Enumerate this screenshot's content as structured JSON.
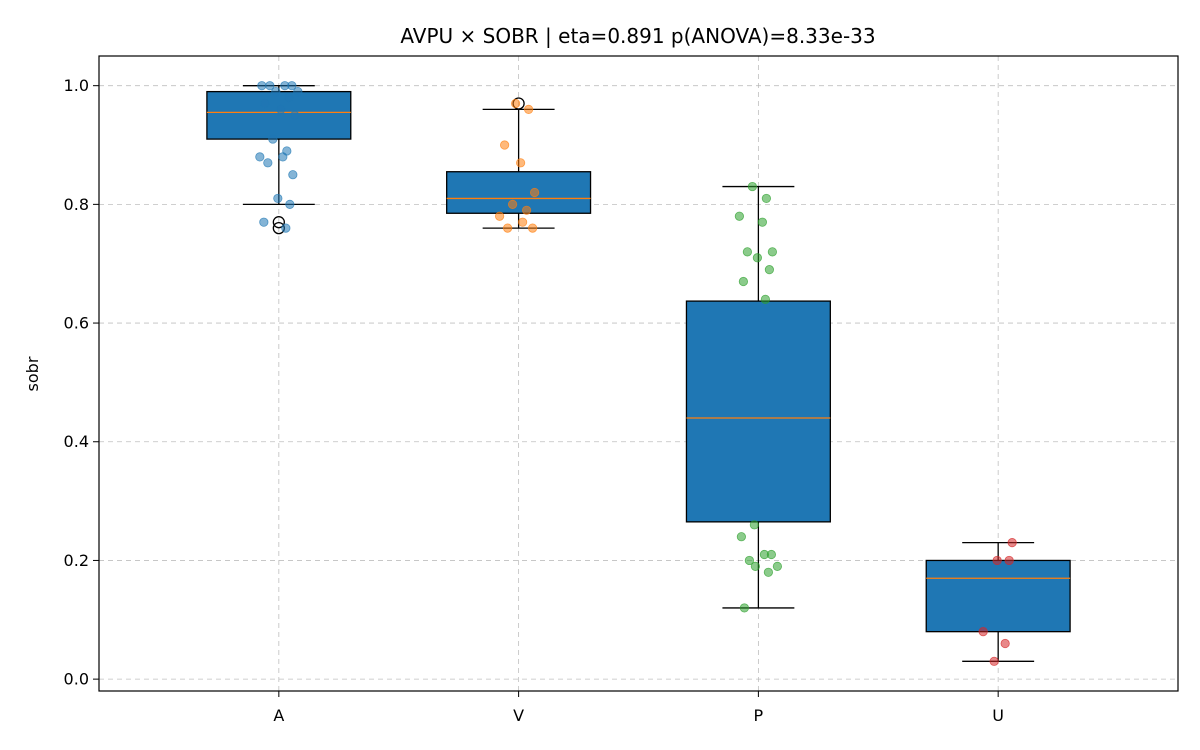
{
  "chart_data": {
    "type": "box",
    "title": "AVPU × SOBR  |  eta=0.891  p(ANOVA)=8.33e-33",
    "xlabel": "",
    "ylabel": "sobr",
    "ylim": [
      -0.02,
      1.05
    ],
    "yticks": [
      "0.0",
      "0.2",
      "0.4",
      "0.6",
      "0.8",
      "1.0"
    ],
    "grid": true,
    "categories": [
      "A",
      "V",
      "P",
      "U"
    ],
    "box_color": "#1f77b4",
    "median_color": "#ff7f0e",
    "boxes": [
      {
        "category": "A",
        "whisker_low": 0.8,
        "q1": 0.91,
        "median": 0.955,
        "q3": 0.99,
        "whisker_high": 1.0,
        "outliers": [
          0.77,
          0.76
        ]
      },
      {
        "category": "V",
        "whisker_low": 0.76,
        "q1": 0.785,
        "median": 0.81,
        "q3": 0.855,
        "whisker_high": 0.96,
        "outliers": [
          0.97
        ]
      },
      {
        "category": "P",
        "whisker_low": 0.12,
        "q1": 0.265,
        "median": 0.44,
        "q3": 0.637,
        "whisker_high": 0.83,
        "outliers": []
      },
      {
        "category": "U",
        "whisker_low": 0.03,
        "q1": 0.08,
        "median": 0.17,
        "q3": 0.2,
        "whisker_high": 0.23,
        "outliers": []
      }
    ],
    "points": [
      {
        "category": "A",
        "color": "#1f77b4",
        "values": [
          1.0,
          1.0,
          1.0,
          1.0,
          0.99,
          0.99,
          0.98,
          0.97,
          0.96,
          0.95,
          0.91,
          0.89,
          0.88,
          0.88,
          0.87,
          0.85,
          0.81,
          0.8,
          0.77,
          0.76
        ]
      },
      {
        "category": "V",
        "color": "#ff7f0e",
        "values": [
          0.97,
          0.96,
          0.9,
          0.87,
          0.82,
          0.8,
          0.79,
          0.78,
          0.77,
          0.76,
          0.76
        ]
      },
      {
        "category": "P",
        "color": "#2ca02c",
        "values": [
          0.83,
          0.81,
          0.78,
          0.77,
          0.72,
          0.72,
          0.71,
          0.69,
          0.67,
          0.64,
          0.26,
          0.24,
          0.21,
          0.21,
          0.2,
          0.19,
          0.19,
          0.18,
          0.12
        ]
      },
      {
        "category": "U",
        "color": "#d62728",
        "values": [
          0.23,
          0.2,
          0.2,
          0.08,
          0.06,
          0.03
        ]
      }
    ]
  }
}
